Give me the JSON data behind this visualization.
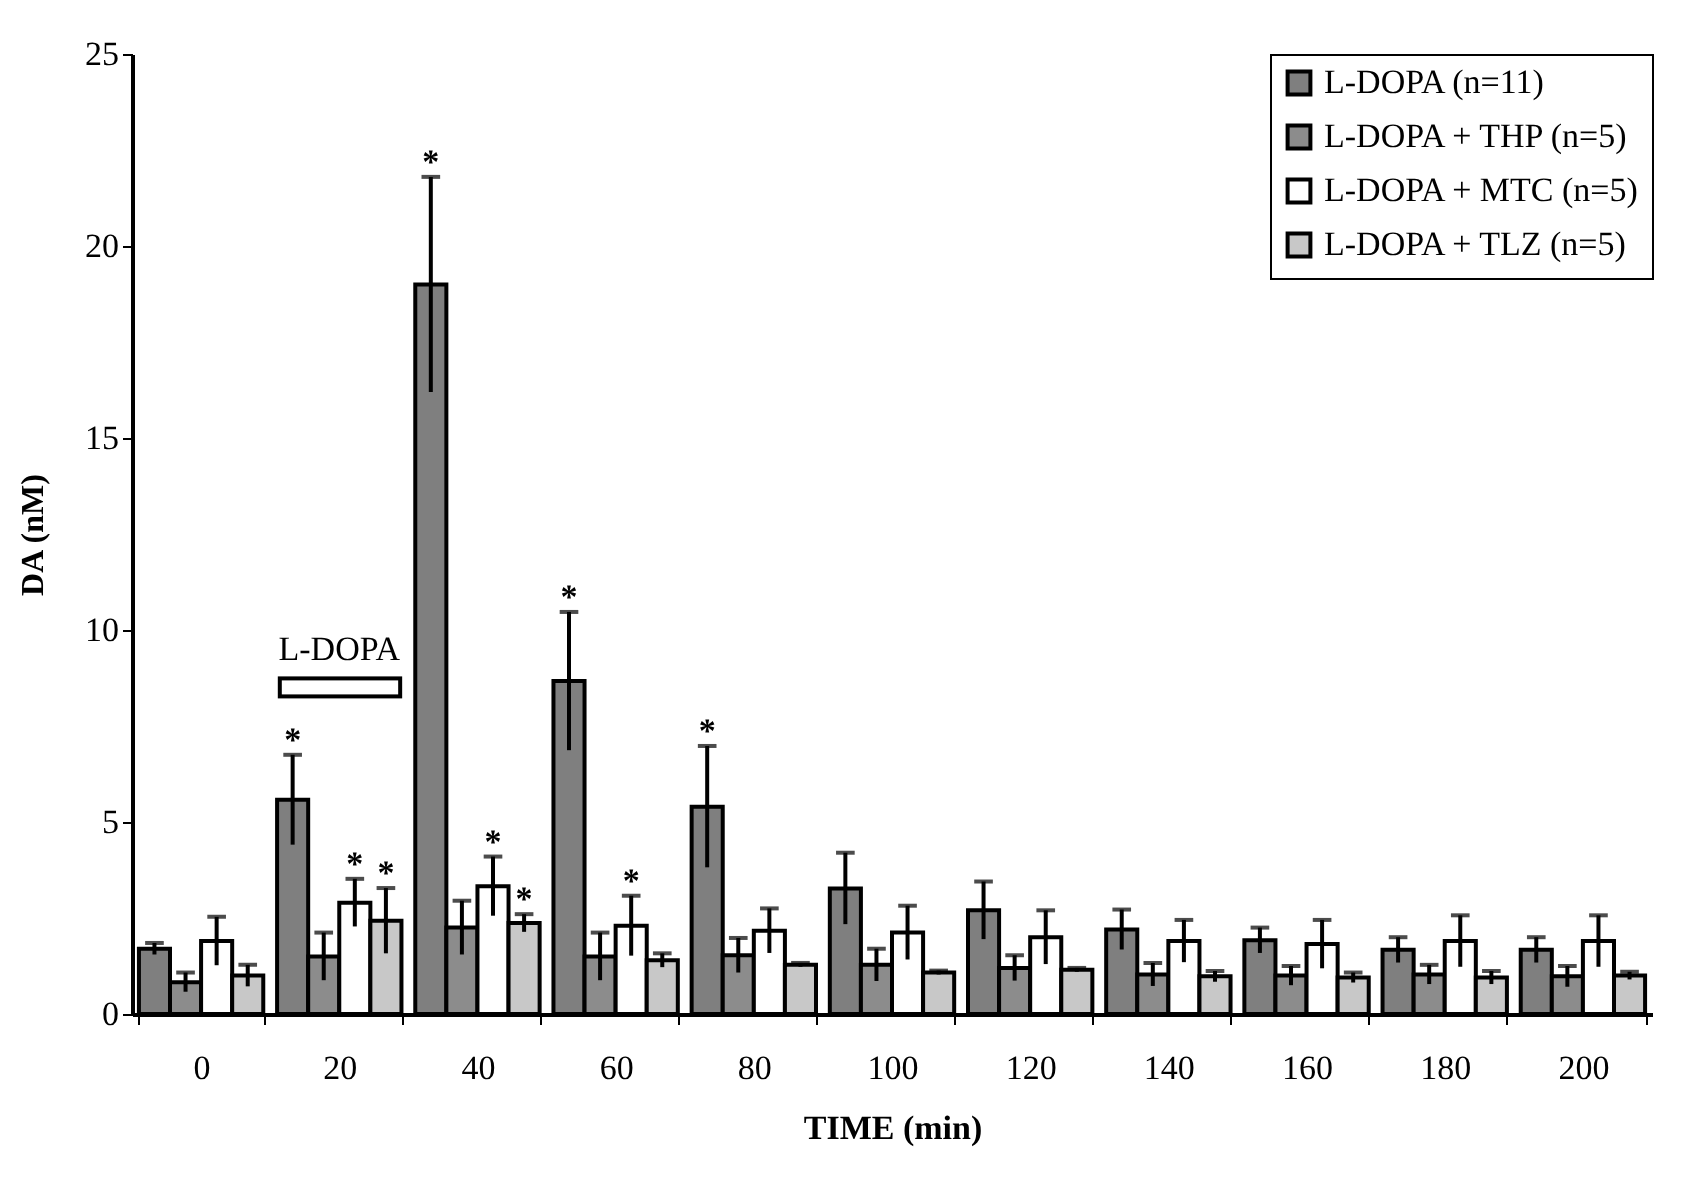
{
  "chart_data": {
    "type": "bar",
    "xlabel": "TIME (min)",
    "ylabel": "DA (nM)",
    "categories": [
      "0",
      "20",
      "40",
      "60",
      "80",
      "100",
      "120",
      "140",
      "160",
      "180",
      "200"
    ],
    "ylim": [
      0,
      25
    ],
    "yticks": [
      0,
      5,
      10,
      15,
      20,
      25
    ],
    "grid": false,
    "legend": "top right",
    "annotations": [
      "L-DOPA"
    ],
    "series": [
      {
        "name": "L-DOPA (n=11)",
        "color": "#7f7f7f",
        "values": [
          1.7,
          5.58,
          19.0,
          8.67,
          5.4,
          3.27,
          2.7,
          2.2,
          1.92,
          1.67,
          1.67
        ],
        "errors": [
          0.15,
          1.17,
          2.8,
          1.8,
          1.58,
          0.93,
          0.75,
          0.52,
          0.33,
          0.33,
          0.33
        ],
        "value_labels": [
          null,
          "*",
          "*",
          "*",
          "*",
          null,
          null,
          null,
          null,
          null,
          null
        ]
      },
      {
        "name": "L-DOPA + THP (n=5)",
        "color": "#8c8c8c",
        "values": [
          0.83,
          1.5,
          2.25,
          1.5,
          1.53,
          1.28,
          1.2,
          1.03,
          1.0,
          1.03,
          0.98
        ],
        "errors": [
          0.25,
          0.62,
          0.7,
          0.62,
          0.45,
          0.42,
          0.33,
          0.3,
          0.25,
          0.25,
          0.27
        ],
        "value_labels": [
          null,
          null,
          null,
          null,
          null,
          null,
          null,
          null,
          null,
          null,
          null
        ]
      },
      {
        "name": "L-DOPA + MTC (n=5)",
        "color": "#ffffff",
        "values": [
          1.9,
          2.9,
          3.33,
          2.3,
          2.17,
          2.12,
          2.0,
          1.9,
          1.82,
          1.9,
          1.9
        ],
        "errors": [
          0.63,
          0.62,
          0.77,
          0.78,
          0.58,
          0.7,
          0.7,
          0.55,
          0.63,
          0.67,
          0.67
        ],
        "value_labels": [
          null,
          "*",
          "*",
          "*",
          null,
          null,
          null,
          null,
          null,
          null,
          null
        ]
      },
      {
        "name": "L-DOPA + TLZ (n=5)",
        "color": "#c8c8c8",
        "values": [
          1.0,
          2.43,
          2.37,
          1.4,
          1.28,
          1.08,
          1.15,
          0.98,
          0.95,
          0.95,
          1.0
        ],
        "errors": [
          0.28,
          0.85,
          0.23,
          0.18,
          0.05,
          0.05,
          0.05,
          0.14,
          0.13,
          0.17,
          0.1
        ],
        "value_labels": [
          null,
          "*",
          "*",
          null,
          null,
          null,
          null,
          null,
          null,
          null,
          null
        ]
      }
    ]
  }
}
